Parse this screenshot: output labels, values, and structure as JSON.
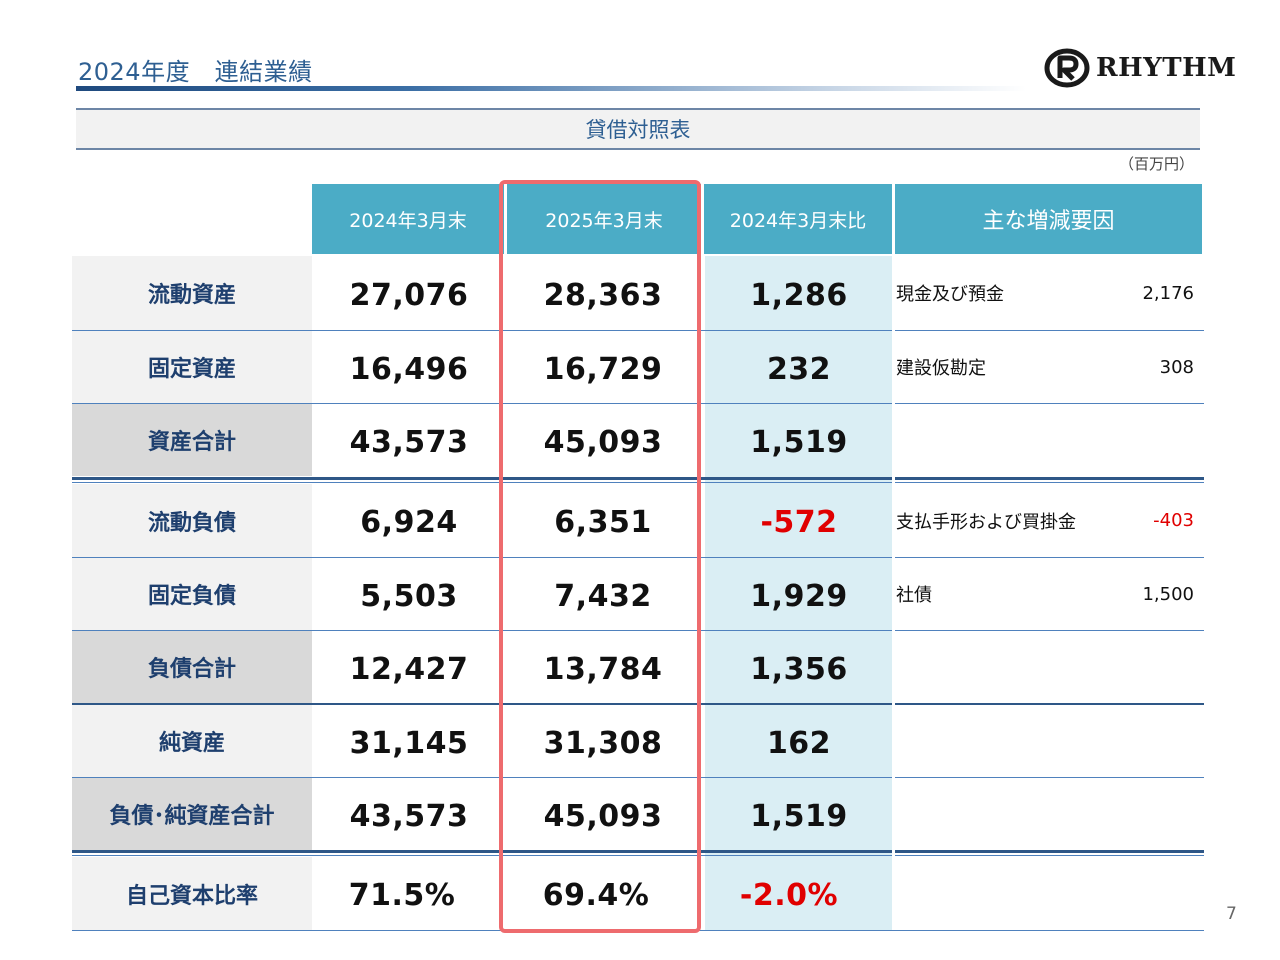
{
  "header": {
    "title": "2024年度　連結業績",
    "logo_text": "RHYTHM"
  },
  "section": {
    "title": "貸借対照表",
    "unit": "（百万円）"
  },
  "columns": {
    "prev": "2024年3月末",
    "curr": "2025年3月末",
    "diff": "2024年3月末比",
    "factors": "主な増減要因"
  },
  "rows": [
    {
      "label": "流動資産",
      "prev": "27,076",
      "curr": "28,363",
      "diff": "1,286",
      "factor_name": "現金及び預金",
      "factor_value": "2,176"
    },
    {
      "label": "固定資産",
      "prev": "16,496",
      "curr": "16,729",
      "diff": "232",
      "factor_name": "建設仮勘定",
      "factor_value": "308"
    },
    {
      "label": "資産合計",
      "prev": "43,573",
      "curr": "45,093",
      "diff": "1,519",
      "factor_name": "",
      "factor_value": ""
    },
    {
      "label": "流動負債",
      "prev": "6,924",
      "curr": "6,351",
      "diff": "-572",
      "factor_name": "支払手形および買掛金",
      "factor_value": "-403"
    },
    {
      "label": "固定負債",
      "prev": "5,503",
      "curr": "7,432",
      "diff": "1,929",
      "factor_name": "社債",
      "factor_value": "1,500"
    },
    {
      "label": "負債合計",
      "prev": "12,427",
      "curr": "13,784",
      "diff": "1,356",
      "factor_name": "",
      "factor_value": ""
    },
    {
      "label": "純資産",
      "prev": "31,145",
      "curr": "31,308",
      "diff": "162",
      "factor_name": "",
      "factor_value": ""
    },
    {
      "label": "負債･純資産合計",
      "prev": "43,573",
      "curr": "45,093",
      "diff": "1,519",
      "factor_name": "",
      "factor_value": ""
    },
    {
      "label": "自己資本比率",
      "prev": "71.5%",
      "curr": "69.4%",
      "diff": "-2.0%",
      "factor_name": "",
      "factor_value": ""
    }
  ],
  "colors": {
    "header_blue": "#4bacc6",
    "diff_bg": "#daeef4",
    "highlight": "#ee6b6e",
    "negative": "#e00000",
    "title": "#2e5f92"
  },
  "page_number": "7"
}
